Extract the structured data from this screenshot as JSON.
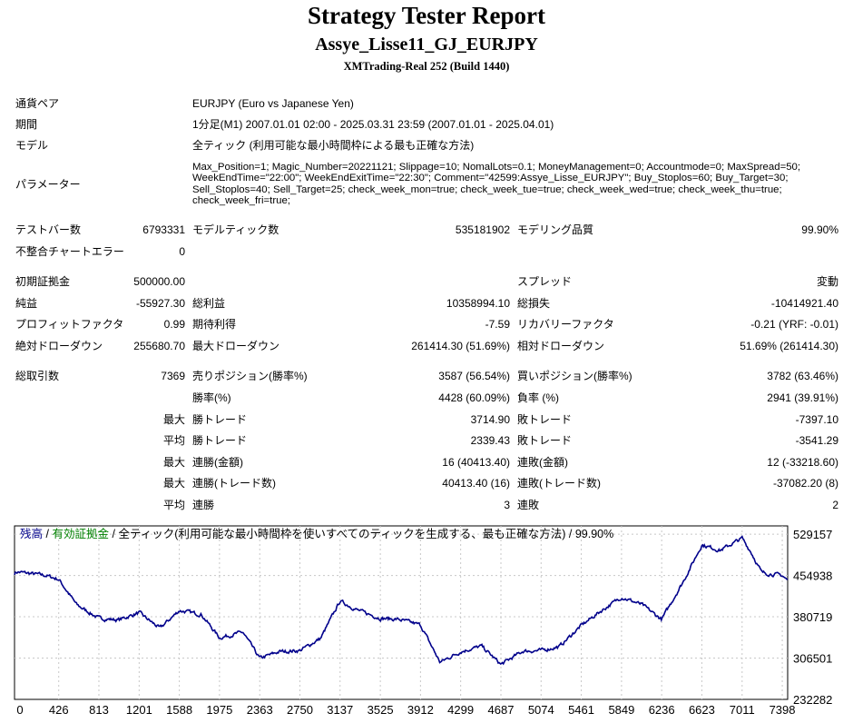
{
  "header": {
    "title": "Strategy Tester Report",
    "ea_name": "Assye_Lisse11_GJ_EURJPY",
    "server": "XMTrading-Real 252 (Build 1440)"
  },
  "info": {
    "symbol_label": "通貨ペア",
    "symbol_value": "EURJPY (Euro vs Japanese Yen)",
    "period_label": "期間",
    "period_value": "1分足(M1) 2007.01.01 02:00 - 2025.03.31 23:59 (2007.01.01 - 2025.04.01)",
    "model_label": "モデル",
    "model_value": "全ティック (利用可能な最小時間枠による最も正確な方法)",
    "params_label": "パラメーター",
    "params_value": "Max_Position=1; Magic_Number=20221121; Slippage=10; NomalLots=0.1; MoneyManagement=0; Accountmode=0; MaxSpread=50; WeekEndTime=\"22:00\"; WeekEndExitTime=\"22:30\"; Comment=\"42599:Assye_Lisse_EURJPY\"; Buy_Stoplos=60; Buy_Target=30; Sell_Stoplos=40; Sell_Target=25; check_week_mon=true; check_week_tue=true; check_week_wed=true; check_week_thu=true; check_week_fri=true;"
  },
  "stats": {
    "bars_label": "テストバー数",
    "bars_value": "6793331",
    "ticks_label": "モデルティック数",
    "ticks_value": "535181902",
    "quality_label": "モデリング品質",
    "quality_value": "99.90%",
    "mismatch_label": "不整合チャートエラー",
    "mismatch_value": "0",
    "deposit_label": "初期証拠金",
    "deposit_value": "500000.00",
    "spread_label": "スプレッド",
    "spread_value": "変動",
    "net_label": "純益",
    "net_value": "-55927.30",
    "gross_profit_label": "総利益",
    "gross_profit_value": "10358994.10",
    "gross_loss_label": "総損失",
    "gross_loss_value": "-10414921.40",
    "pf_label": "プロフィットファクタ",
    "pf_value": "0.99",
    "expected_label": "期待利得",
    "expected_value": "-7.59",
    "recovery_label": "リカバリーファクタ",
    "recovery_value": "-0.21 (YRF: -0.01)",
    "abs_dd_label": "絶対ドローダウン",
    "abs_dd_value": "255680.70",
    "max_dd_label": "最大ドローダウン",
    "max_dd_value": "261414.30 (51.69%)",
    "rel_dd_label": "相対ドローダウン",
    "rel_dd_value": "51.69% (261414.30)",
    "trades_label": "総取引数",
    "trades_value": "7369",
    "short_label": "売りポジション(勝率%)",
    "short_value": "3587 (56.54%)",
    "long_label": "買いポジション(勝率%)",
    "long_value": "3782 (63.46%)",
    "winrate_label": "勝率(%)",
    "winrate_value": "4428 (60.09%)",
    "lossrate_label": "負率 (%)",
    "lossrate_value": "2941 (39.91%)",
    "max_prefix": "最大",
    "avg_prefix": "平均",
    "largest_win_label": "勝トレード",
    "largest_win_value": "3714.90",
    "largest_loss_label": "敗トレード",
    "largest_loss_value": "-7397.10",
    "avg_win_label": "勝トレード",
    "avg_win_value": "2339.43",
    "avg_loss_label": "敗トレード",
    "avg_loss_value": "-3541.29",
    "max_consec_wins_label": "連勝(金額)",
    "max_consec_wins_value": "16 (40413.40)",
    "max_consec_losses_label": "連敗(金額)",
    "max_consec_losses_value": "12 (-33218.60)",
    "max_consec_profit_label": "連勝(トレード数)",
    "max_consec_profit_value": "40413.40 (16)",
    "max_consec_loss_label": "連敗(トレード数)",
    "max_consec_loss_value": "-37082.20 (8)",
    "avg_consec_wins_label": "連勝",
    "avg_consec_wins_value": "3",
    "avg_consec_losses_label": "連敗",
    "avg_consec_losses_value": "2"
  },
  "legend": {
    "balance": "残高",
    "equity": "有効証拠金",
    "description": "全ティック(利用可能な最小時間枠を使いすべてのティックを生成する、最も正確な方法)",
    "quality": "99.90%",
    "sep": "/",
    "balance_color": "#00008b",
    "equity_color": "#008000"
  },
  "chart_data": {
    "type": "line",
    "series": [
      {
        "x": [
          0,
          300,
          426,
          600,
          813,
          1000,
          1201,
          1400,
          1588,
          1800,
          1975,
          2200,
          2363,
          2550,
          2750,
          2950,
          3137,
          3300,
          3525,
          3700,
          3912,
          4100,
          4299,
          4500,
          4687,
          4900,
          5074,
          5250,
          5461,
          5650,
          5849,
          6050,
          6236,
          6450,
          6623,
          6800,
          7011,
          7100,
          7200,
          7398,
          7450
        ],
        "y": [
          462000,
          455000,
          448000,
          402000,
          378000,
          375000,
          388000,
          360000,
          392000,
          385000,
          343000,
          353000,
          306000,
          318000,
          320000,
          342000,
          409000,
          393000,
          378000,
          376000,
          366000,
          299000,
          318000,
          328000,
          295000,
          319000,
          320000,
          327000,
          365000,
          391000,
          416000,
          402000,
          376000,
          446000,
          510000,
          500000,
          522000,
          496000,
          460000,
          455000,
          446000
        ],
        "color": "#00008b"
      }
    ],
    "x_ticks": [
      "0",
      "426",
      "813",
      "1201",
      "1588",
      "1975",
      "2363",
      "2750",
      "3137",
      "3525",
      "3912",
      "4299",
      "4687",
      "5074",
      "5461",
      "5849",
      "6236",
      "6623",
      "7011",
      "7398"
    ],
    "x_tick_values": [
      0,
      426,
      813,
      1201,
      1588,
      1975,
      2363,
      2750,
      3137,
      3525,
      3912,
      4299,
      4687,
      5074,
      5461,
      5849,
      6236,
      6623,
      7011,
      7398
    ],
    "y_ticks": [
      "529157",
      "454938",
      "380719",
      "306501",
      "232282"
    ],
    "y_tick_values": [
      529157,
      454938,
      380719,
      306501,
      232282
    ],
    "xlim": [
      0,
      7450
    ],
    "ylim": [
      232282,
      544000
    ],
    "grid": true
  }
}
